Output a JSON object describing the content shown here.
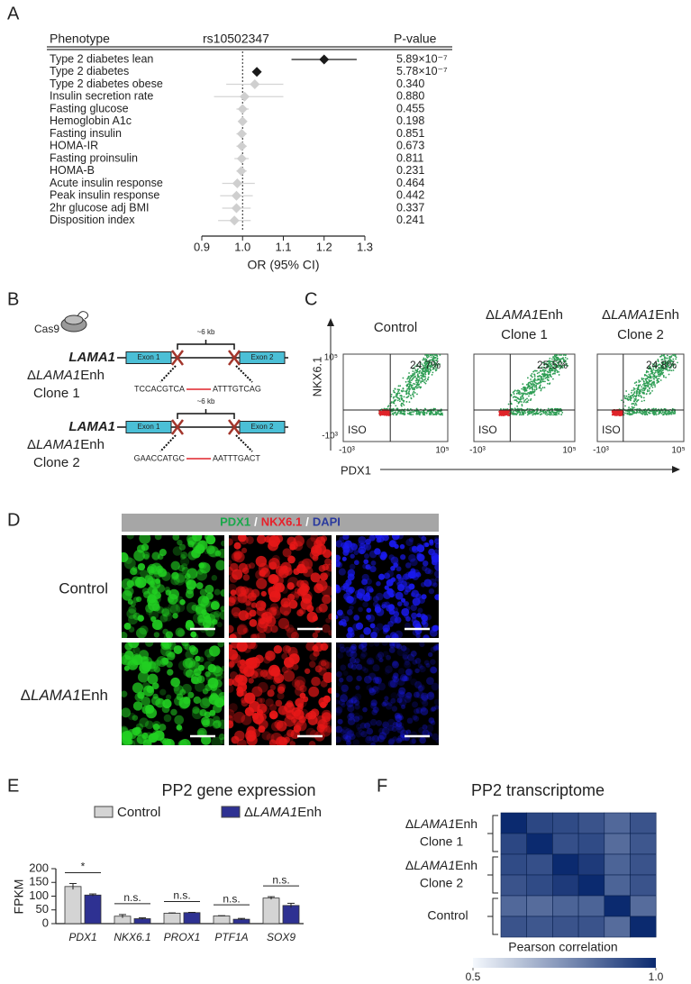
{
  "chart_data": [
    {
      "type": "forest",
      "panel_label": "A",
      "headers": [
        "Phenotype",
        "rs10502347",
        "P-value"
      ],
      "categories": [
        "Type 2 diabetes lean",
        "Type 2 diabetes",
        "Type 2 diabetes obese",
        "Insulin secretion rate",
        "Fasting glucose",
        "Hemoglobin A1c",
        "Fasting insulin",
        "HOMA-IR",
        "Fasting proinsulin",
        "HOMA-B",
        "Acute insulin response",
        "Peak insulin response",
        "2hr glucose adj BMI",
        "Disposition index"
      ],
      "values": [
        1.2,
        1.035,
        1.03,
        1.005,
        1.0,
        1.0,
        0.998,
        0.998,
        0.998,
        0.997,
        0.987,
        0.985,
        0.985,
        0.98
      ],
      "ci_low": [
        1.12,
        1.025,
        0.96,
        0.93,
        0.985,
        0.99,
        0.985,
        0.985,
        0.98,
        0.985,
        0.95,
        0.945,
        0.95,
        0.94
      ],
      "ci_high": [
        1.28,
        1.045,
        1.1,
        1.1,
        1.015,
        1.01,
        1.01,
        1.01,
        1.015,
        1.01,
        1.03,
        1.025,
        1.02,
        1.02
      ],
      "p_values": [
        "5.89×10⁻⁷",
        "5.78×10⁻⁷",
        "0.340",
        "0.880",
        "0.455",
        "0.198",
        "0.851",
        "0.673",
        "0.811",
        "0.231",
        "0.464",
        "0.442",
        "0.337",
        "0.241"
      ],
      "colors": [
        "#1a1a1a",
        "#1a1a1a",
        "#cfcfcf",
        "#cfcfcf",
        "#cfcfcf",
        "#cfcfcf",
        "#cfcfcf",
        "#cfcfcf",
        "#cfcfcf",
        "#cfcfcf",
        "#cfcfcf",
        "#cfcfcf",
        "#cfcfcf",
        "#cfcfcf"
      ],
      "xlim": [
        0.9,
        1.3
      ],
      "xticks": [
        0.9,
        {
          "value": 1,
          "label": "1.0"
        },
        1.1,
        1.2,
        1.3
      ],
      "xlabel": "OR (95% CI)",
      "reference_line": 1
    },
    {
      "type": "bar",
      "panel_label": "E",
      "title": "PP2 gene expression",
      "ylabel": "FPKM",
      "categories": [
        "PDX1",
        "NKX6.1",
        "PROX1",
        "PTF1A",
        "SOX9"
      ],
      "series": [
        {
          "name": "Control",
          "color": "#d4d4d4",
          "values": [
            135,
            27,
            38,
            28,
            93
          ],
          "errors": [
            11,
            6,
            1,
            1,
            5
          ]
        },
        {
          "name": [
            "Δ",
            "LAMA1",
            "Enh"
          ],
          "color": "#2e3192",
          "values": [
            104,
            18,
            40,
            16,
            66
          ],
          "errors": [
            4,
            3,
            1,
            3,
            8
          ]
        }
      ],
      "significance": [
        "*",
        "n.s.",
        "n.s.",
        "n.s.",
        "n.s."
      ],
      "ylim": [
        0,
        200
      ],
      "yticks": [
        0,
        50,
        100,
        150,
        200
      ]
    },
    {
      "type": "heatmap",
      "panel_label": "F",
      "title": "PP2 transcriptome",
      "row_groups": [
        {
          "label": [
            "Δ",
            "LAMA1",
            "Enh"
          ],
          "sublabel": "Clone 1"
        },
        {
          "label": [
            "Δ",
            "LAMA1",
            "Enh"
          ],
          "sublabel": "Clone 2"
        },
        {
          "label": "Control"
        }
      ],
      "values": [
        [
          1.0,
          0.93,
          0.92,
          0.9,
          0.85,
          0.9
        ],
        [
          0.93,
          1.0,
          0.91,
          0.92,
          0.84,
          0.89
        ],
        [
          0.92,
          0.91,
          1.0,
          0.96,
          0.86,
          0.9
        ],
        [
          0.9,
          0.92,
          0.96,
          1.0,
          0.86,
          0.9
        ],
        [
          0.85,
          0.84,
          0.86,
          0.86,
          1.0,
          0.84
        ],
        [
          0.9,
          0.89,
          0.9,
          0.9,
          0.84,
          1.0
        ]
      ],
      "colorbar": {
        "label": "Pearson correlation",
        "colors": [
          "#f4f8fd",
          "#0b2a6f"
        ],
        "lim": [
          0.5,
          1.0
        ],
        "ticks": [
          0.5,
          {
            "value": 1,
            "label": "1.0"
          }
        ]
      }
    }
  ],
  "diagram_b": {
    "panel_label": "B",
    "cas9": "Cas9",
    "constructs": [
      {
        "gene": "LAMA1",
        "exons": [
          "Exon 1",
          "Exon 2"
        ],
        "distance": "~6 kb",
        "label": [
          "Δ",
          "LAMA1",
          "Enh"
        ],
        "clone": "Clone 1",
        "left_seq": "TCCACGTCA",
        "right_seq": "ATTTGTCAG"
      },
      {
        "gene": "LAMA1",
        "exons": [
          "Exon 1",
          "Exon 2"
        ],
        "distance": "~6 kb",
        "label": [
          "Δ",
          "LAMA1",
          "Enh"
        ],
        "clone": "Clone 2",
        "left_seq": "GAACCATGC",
        "right_seq": "AATTTGACT"
      }
    ]
  },
  "flow_c": {
    "panel_label": "C",
    "y_label": "NKX6.1",
    "x_label": "PDX1",
    "y_ticks": [
      "10⁵",
      "-10³"
    ],
    "plots": [
      {
        "title": "Control",
        "percent": "24.7%",
        "gate": "ISO",
        "x_ticks": [
          "-10³",
          "10⁵"
        ]
      },
      {
        "title": [
          "Δ",
          "LAMA1",
          "Enh"
        ],
        "subtitle": "Clone 1",
        "percent": "25.5%",
        "gate": "ISO",
        "x_ticks": [
          "-10³",
          "10⁵"
        ]
      },
      {
        "title": [
          "Δ",
          "LAMA1",
          "Enh"
        ],
        "subtitle": "Clone 2",
        "percent": "24.8%",
        "gate": "ISO",
        "x_ticks": [
          "-10³",
          "10⁵"
        ]
      }
    ]
  },
  "imaging_d": {
    "panel_label": "D",
    "stain_labels": [
      "PDX1",
      "/",
      "NKX6.1",
      "/",
      "DAPI"
    ],
    "stain_colors": [
      "#19a84a",
      "#ffffff",
      "#e8202a",
      "#ffffff",
      "#2b3a9e"
    ],
    "channel_colors": [
      "#22d022",
      "#e81818",
      "#1a1aee"
    ],
    "rows": [
      {
        "label": "Control"
      },
      {
        "label": [
          "Δ",
          "LAMA1",
          "Enh"
        ]
      }
    ]
  }
}
